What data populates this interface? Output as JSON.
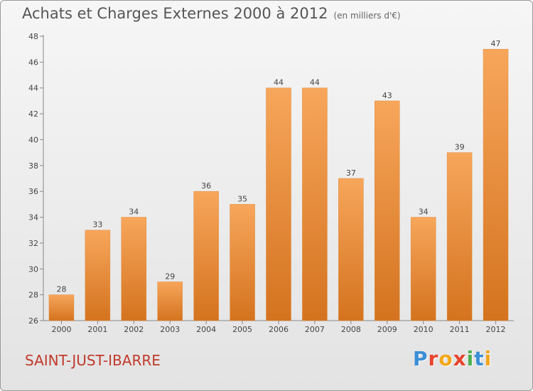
{
  "chart_data": {
    "type": "bar",
    "title": "Achats et Charges Externes 2000 à 2012",
    "subtitle": "(en milliers d'€)",
    "categories": [
      "2000",
      "2001",
      "2002",
      "2003",
      "2004",
      "2005",
      "2006",
      "2007",
      "2008",
      "2009",
      "2010",
      "2011",
      "2012"
    ],
    "values": [
      28,
      33,
      34,
      29,
      36,
      35,
      44,
      44,
      37,
      43,
      34,
      39,
      47
    ],
    "ylim": [
      26,
      48
    ],
    "yticks": [
      26,
      28,
      30,
      32,
      34,
      36,
      38,
      40,
      42,
      44,
      46,
      48
    ],
    "xlabel": "",
    "ylabel": "",
    "grid": false,
    "bar_color_top": "#f7a65b",
    "bar_color_bottom": "#d4731f"
  },
  "footer": {
    "town": "SAINT-JUST-IBARRE",
    "town_color": "#c0392b"
  },
  "logo": {
    "text": "Proxiti",
    "letters": [
      {
        "ch": "P",
        "color": "#3b8fd6"
      },
      {
        "ch": "r",
        "color": "#e8442e"
      },
      {
        "ch": "o",
        "color": "#f2a71b"
      },
      {
        "ch": "x",
        "color": "#e8442e"
      },
      {
        "ch": "i",
        "color": "#4caf50"
      },
      {
        "ch": "t",
        "color": "#3b8fd6"
      },
      {
        "ch": "i",
        "color": "#f2a71b"
      }
    ]
  }
}
